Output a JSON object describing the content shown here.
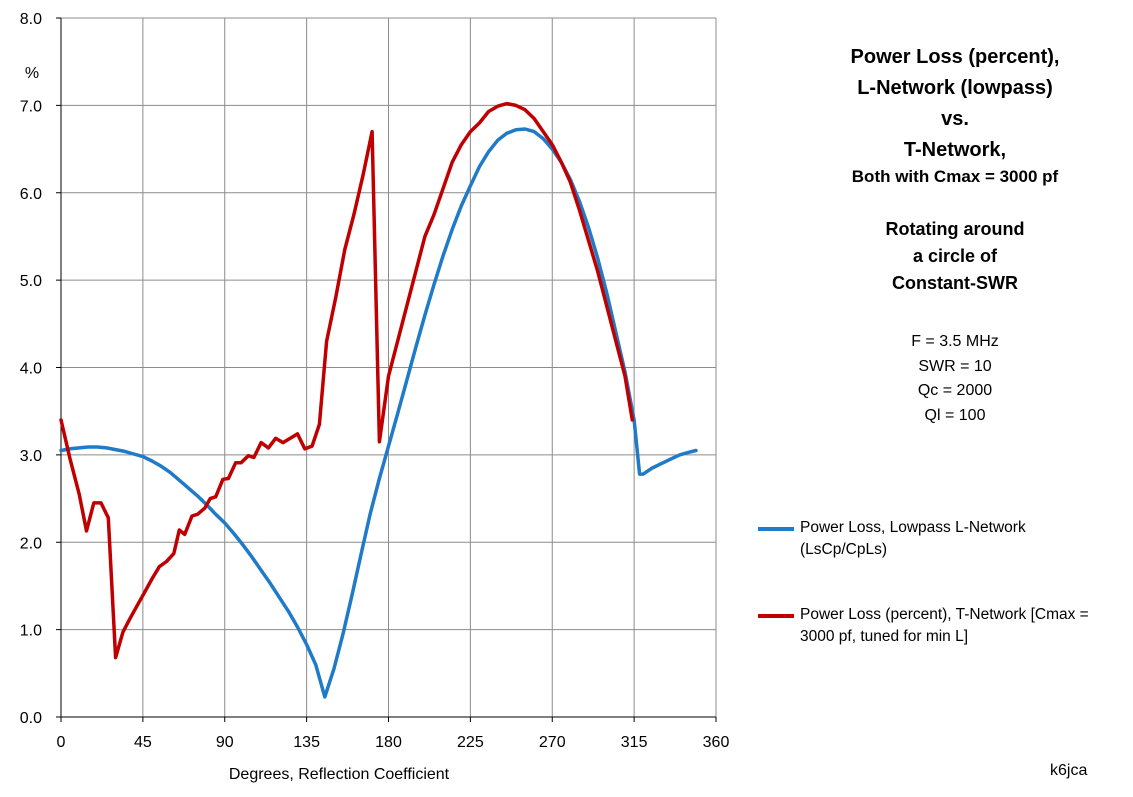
{
  "chart_data": {
    "type": "line",
    "title": {
      "lines_big": [
        "Power Loss (percent),",
        "L-Network (lowpass)",
        "vs.",
        "T-Network,"
      ],
      "line_small": "Both with Cmax = 3000 pf",
      "lines_rotating": [
        "Rotating around",
        "a circle of",
        "Constant-SWR"
      ]
    },
    "params": [
      "F = 3.5 MHz",
      "SWR = 10",
      "Qc = 2000",
      "Ql = 100"
    ],
    "xlabel": "Degrees, Reflection Coefficient",
    "ylabel": "%",
    "xlim": [
      0,
      360
    ],
    "ylim": [
      0,
      8
    ],
    "xticks": [
      0,
      45,
      90,
      135,
      180,
      225,
      270,
      315,
      360
    ],
    "xtick_labels": [
      "0",
      "45",
      "90",
      "135",
      "180",
      "225",
      "270",
      "315",
      "360"
    ],
    "yticks": [
      0,
      1,
      2,
      3,
      4,
      5,
      6,
      7,
      8
    ],
    "ytick_labels": [
      "0.0",
      "1.0",
      "2.0",
      "3.0",
      "4.0",
      "5.0",
      "6.0",
      "7.0",
      "8.0"
    ],
    "grid": true,
    "legend_position": "right",
    "series": [
      {
        "name": "Power Loss, Lowpass L-Network (LsCp/CpLs)",
        "color": "#1f7ac8",
        "points": [
          [
            0,
            3.05
          ],
          [
            5,
            3.07
          ],
          [
            10,
            3.08
          ],
          [
            15,
            3.09
          ],
          [
            20,
            3.09
          ],
          [
            25,
            3.08
          ],
          [
            30,
            3.06
          ],
          [
            35,
            3.04
          ],
          [
            40,
            3.01
          ],
          [
            45,
            2.98
          ],
          [
            50,
            2.93
          ],
          [
            55,
            2.87
          ],
          [
            60,
            2.8
          ],
          [
            65,
            2.71
          ],
          [
            70,
            2.62
          ],
          [
            75,
            2.53
          ],
          [
            80,
            2.43
          ],
          [
            85,
            2.32
          ],
          [
            90,
            2.22
          ],
          [
            95,
            2.1
          ],
          [
            100,
            1.97
          ],
          [
            105,
            1.83
          ],
          [
            110,
            1.68
          ],
          [
            115,
            1.53
          ],
          [
            120,
            1.37
          ],
          [
            125,
            1.21
          ],
          [
            130,
            1.03
          ],
          [
            135,
            0.83
          ],
          [
            140,
            0.6
          ],
          [
            145,
            0.23
          ],
          [
            150,
            0.55
          ],
          [
            155,
            0.95
          ],
          [
            160,
            1.4
          ],
          [
            165,
            1.87
          ],
          [
            170,
            2.33
          ],
          [
            175,
            2.73
          ],
          [
            180,
            3.1
          ],
          [
            185,
            3.47
          ],
          [
            190,
            3.85
          ],
          [
            195,
            4.23
          ],
          [
            200,
            4.6
          ],
          [
            205,
            4.95
          ],
          [
            210,
            5.28
          ],
          [
            215,
            5.58
          ],
          [
            220,
            5.85
          ],
          [
            225,
            6.08
          ],
          [
            230,
            6.3
          ],
          [
            235,
            6.47
          ],
          [
            240,
            6.6
          ],
          [
            245,
            6.68
          ],
          [
            250,
            6.72
          ],
          [
            255,
            6.73
          ],
          [
            260,
            6.7
          ],
          [
            265,
            6.62
          ],
          [
            270,
            6.5
          ],
          [
            275,
            6.35
          ],
          [
            280,
            6.15
          ],
          [
            285,
            5.9
          ],
          [
            290,
            5.6
          ],
          [
            295,
            5.25
          ],
          [
            300,
            4.85
          ],
          [
            305,
            4.4
          ],
          [
            310,
            3.95
          ],
          [
            315,
            3.4
          ],
          [
            318,
            2.78
          ],
          [
            320,
            2.78
          ],
          [
            325,
            2.85
          ],
          [
            330,
            2.9
          ],
          [
            335,
            2.95
          ],
          [
            340,
            3.0
          ],
          [
            345,
            3.03
          ],
          [
            349,
            3.05
          ]
        ]
      },
      {
        "name": "Power Loss (percent), T-Network  [Cmax = 3000 pf, tuned for min L]",
        "color": "#c00000",
        "points": [
          [
            0,
            3.4
          ],
          [
            5,
            2.95
          ],
          [
            10,
            2.55
          ],
          [
            14,
            2.13
          ],
          [
            18,
            2.45
          ],
          [
            22,
            2.45
          ],
          [
            26,
            2.28
          ],
          [
            30,
            0.68
          ],
          [
            34,
            0.97
          ],
          [
            38,
            1.13
          ],
          [
            42,
            1.28
          ],
          [
            46,
            1.43
          ],
          [
            50,
            1.58
          ],
          [
            54,
            1.72
          ],
          [
            58,
            1.78
          ],
          [
            62,
            1.87
          ],
          [
            65,
            2.14
          ],
          [
            68,
            2.09
          ],
          [
            72,
            2.3
          ],
          [
            75,
            2.32
          ],
          [
            79,
            2.39
          ],
          [
            82,
            2.5
          ],
          [
            85,
            2.52
          ],
          [
            89,
            2.72
          ],
          [
            92,
            2.73
          ],
          [
            96,
            2.91
          ],
          [
            99,
            2.91
          ],
          [
            103,
            2.99
          ],
          [
            106,
            2.97
          ],
          [
            110,
            3.14
          ],
          [
            114,
            3.08
          ],
          [
            118,
            3.19
          ],
          [
            122,
            3.14
          ],
          [
            126,
            3.19
          ],
          [
            130,
            3.24
          ],
          [
            134,
            3.07
          ],
          [
            138,
            3.1
          ],
          [
            142,
            3.35
          ],
          [
            146,
            4.3
          ],
          [
            151,
            4.8
          ],
          [
            156,
            5.35
          ],
          [
            161,
            5.75
          ],
          [
            166,
            6.2
          ],
          [
            171,
            6.7
          ],
          [
            175,
            3.15
          ],
          [
            180,
            3.9
          ],
          [
            185,
            4.3
          ],
          [
            190,
            4.7
          ],
          [
            195,
            5.1
          ],
          [
            200,
            5.5
          ],
          [
            205,
            5.75
          ],
          [
            210,
            6.05
          ],
          [
            215,
            6.35
          ],
          [
            220,
            6.55
          ],
          [
            225,
            6.7
          ],
          [
            230,
            6.8
          ],
          [
            235,
            6.93
          ],
          [
            240,
            6.99
          ],
          [
            245,
            7.02
          ],
          [
            250,
            7.0
          ],
          [
            255,
            6.95
          ],
          [
            260,
            6.85
          ],
          [
            265,
            6.7
          ],
          [
            270,
            6.55
          ],
          [
            275,
            6.35
          ],
          [
            280,
            6.12
          ],
          [
            285,
            5.8
          ],
          [
            290,
            5.45
          ],
          [
            295,
            5.1
          ],
          [
            300,
            4.7
          ],
          [
            305,
            4.3
          ],
          [
            310,
            3.9
          ],
          [
            314,
            3.4
          ]
        ]
      }
    ],
    "legend": [
      {
        "lines": [
          "Power Loss, Lowpass L-Network",
          "(LsCp/CpLs)"
        ],
        "color": "#1f7ac8"
      },
      {
        "lines": [
          "Power Loss (percent), T-Network  [Cmax =",
          "3000 pf, tuned for min L]"
        ],
        "color": "#c00000"
      }
    ],
    "credit": "k6jca"
  }
}
